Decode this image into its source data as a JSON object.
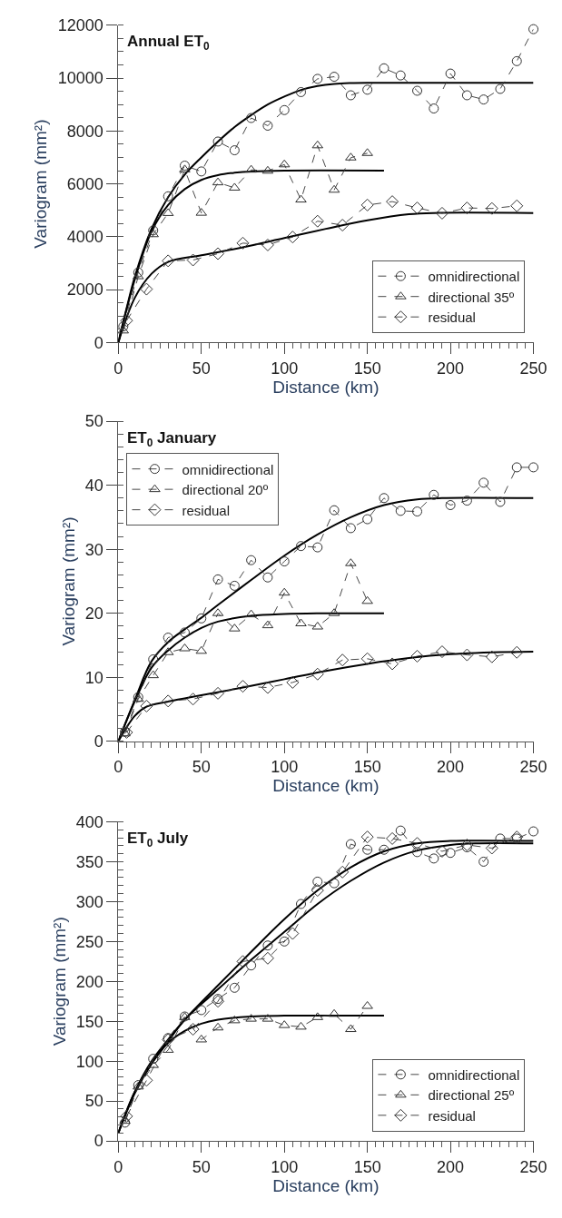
{
  "chart_data": [
    {
      "type": "line",
      "title": "Annual ET$_{0}$",
      "xlabel": "Distance (km)",
      "ylabel": "Variogram (mm²)",
      "xlim": [
        0,
        250
      ],
      "xticks": [
        0,
        50,
        100,
        150,
        200,
        250
      ],
      "ylim": [
        0,
        12000
      ],
      "yticks": [
        0,
        2000,
        4000,
        6000,
        8000,
        10000,
        12000
      ],
      "legend": "bottom right",
      "series": [
        {
          "name": "omnidirectional",
          "color": "#333333",
          "marker": "circle",
          "line_style": "dashed",
          "x": [
            3,
            12,
            21,
            30,
            40,
            50,
            60,
            70,
            80,
            90,
            100,
            110,
            120,
            130,
            140,
            150,
            160,
            170,
            180,
            190,
            200,
            210,
            220,
            230,
            240,
            250
          ],
          "values": [
            610,
            2650,
            4240,
            5530,
            6690,
            6470,
            7600,
            7270,
            8490,
            8200,
            8790,
            9470,
            9970,
            10050,
            9350,
            9560,
            10370,
            10100,
            9520,
            8850,
            10170,
            9350,
            9190,
            9590,
            10640,
            11850
          ]
        },
        {
          "name": "directional 35º",
          "color": "#333333",
          "marker": "triangle",
          "line_style": "dashed",
          "x": [
            3,
            12,
            21,
            30,
            40,
            50,
            60,
            70,
            80,
            90,
            100,
            110,
            120,
            130,
            140,
            150
          ],
          "values": [
            450,
            2500,
            4090,
            4890,
            6540,
            4900,
            6050,
            5850,
            6530,
            6490,
            6730,
            5400,
            7450,
            5770,
            6990,
            7160
          ]
        },
        {
          "name": "residual",
          "color": "#333333",
          "marker": "diamond",
          "line_style": "dashed",
          "x": [
            5,
            17,
            30,
            45,
            60,
            75,
            90,
            105,
            120,
            135,
            150,
            165,
            180,
            195,
            210,
            225,
            240
          ],
          "values": [
            830,
            2020,
            3090,
            3120,
            3360,
            3760,
            3690,
            3990,
            4590,
            4440,
            5200,
            5330,
            5090,
            4890,
            5090,
            5070,
            5170
          ]
        },
        {
          "color": "#000000",
          "marker": "none",
          "line_style": "solid",
          "x": [
            0,
            5,
            10,
            20,
            30,
            40,
            50,
            60,
            70,
            80,
            90,
            100,
            110,
            120,
            130,
            140,
            150,
            250
          ],
          "values": [
            0,
            1300,
            2500,
            4300,
            5500,
            6350,
            7000,
            7600,
            8150,
            8600,
            9000,
            9300,
            9550,
            9700,
            9780,
            9810,
            9820,
            9820
          ]
        },
        {
          "color": "#000000",
          "marker": "none",
          "line_style": "solid",
          "x": [
            0,
            10,
            20,
            30,
            40,
            50,
            60,
            70,
            80,
            100,
            160
          ],
          "values": [
            0,
            2400,
            4200,
            5200,
            5800,
            6150,
            6330,
            6420,
            6470,
            6500,
            6500
          ]
        },
        {
          "color": "#000000",
          "marker": "none",
          "line_style": "solid",
          "x": [
            0,
            10,
            20,
            30,
            50,
            75,
            100,
            125,
            150,
            175,
            190,
            250
          ],
          "values": [
            0,
            1700,
            2600,
            3050,
            3300,
            3600,
            3950,
            4300,
            4620,
            4850,
            4900,
            4900
          ]
        }
      ]
    },
    {
      "type": "line",
      "title": "ET$_{0}$ January",
      "xlabel": "Distance (km)",
      "ylabel": "Variogram (mm²)",
      "xlim": [
        0,
        250
      ],
      "xticks": [
        0,
        50,
        100,
        150,
        200,
        250
      ],
      "ylim": [
        0,
        50
      ],
      "yticks": [
        0,
        10,
        20,
        30,
        40,
        50
      ],
      "legend": "top left",
      "series": [
        {
          "name": "omnidirectional",
          "color": "#333333",
          "marker": "circle",
          "line_style": "dashed",
          "x": [
            4,
            12,
            21,
            30,
            40,
            50,
            60,
            70,
            80,
            90,
            100,
            110,
            120,
            130,
            140,
            150,
            160,
            170,
            180,
            190,
            200,
            210,
            220,
            230,
            240,
            250
          ],
          "values": [
            1.5,
            6.9,
            12.8,
            16.2,
            17.0,
            19.2,
            25.3,
            24.3,
            28.3,
            25.6,
            28.1,
            30.5,
            30.3,
            36.1,
            33.3,
            34.7,
            38.0,
            36.0,
            35.9,
            38.5,
            36.9,
            37.6,
            40.4,
            37.4,
            42.8,
            42.8
          ]
        },
        {
          "name": "directional 20º",
          "color": "#333333",
          "marker": "triangle",
          "line_style": "dashed",
          "x": [
            4,
            12,
            21,
            30,
            40,
            50,
            60,
            70,
            80,
            90,
            100,
            110,
            120,
            130,
            140,
            150
          ],
          "values": [
            1.2,
            6.6,
            10.3,
            13.9,
            14.5,
            14.1,
            20.0,
            17.6,
            19.8,
            18.1,
            23.2,
            18.4,
            17.9,
            20.0,
            27.8,
            21.9
          ]
        },
        {
          "name": "residual",
          "color": "#333333",
          "marker": "diamond",
          "line_style": "dashed",
          "x": [
            5,
            17,
            30,
            45,
            60,
            75,
            90,
            105,
            120,
            135,
            150,
            165,
            180,
            195,
            210,
            225,
            240
          ],
          "values": [
            1.4,
            5.5,
            6.3,
            6.6,
            7.5,
            8.6,
            8.4,
            9.2,
            10.5,
            12.7,
            12.9,
            12.1,
            13.3,
            14.0,
            13.5,
            13.2,
            13.9
          ]
        },
        {
          "color": "#000000",
          "marker": "none",
          "line_style": "solid",
          "x": [
            0,
            10,
            20,
            30,
            40,
            50,
            60,
            80,
            100,
            120,
            140,
            160,
            180,
            195,
            250
          ],
          "values": [
            0,
            6.5,
            12.5,
            15.5,
            17.5,
            19.3,
            21.3,
            25.2,
            29.0,
            32.3,
            35.0,
            36.9,
            37.8,
            38.0,
            38.0
          ]
        },
        {
          "color": "#000000",
          "marker": "none",
          "line_style": "solid",
          "x": [
            0,
            10,
            20,
            30,
            40,
            50,
            60,
            80,
            100,
            120,
            160
          ],
          "values": [
            0,
            6.3,
            11.5,
            14.2,
            16.2,
            17.7,
            18.7,
            19.6,
            19.9,
            20.0,
            20.0
          ]
        },
        {
          "color": "#000000",
          "marker": "none",
          "line_style": "solid",
          "x": [
            0,
            10,
            17,
            30,
            50,
            75,
            100,
            125,
            150,
            175,
            200,
            225,
            250
          ],
          "values": [
            0,
            4.0,
            5.4,
            6.2,
            7.2,
            8.4,
            9.7,
            11.0,
            12.1,
            13.0,
            13.6,
            13.9,
            14.0
          ]
        }
      ]
    },
    {
      "type": "line",
      "title": "ET$_{0}$ July",
      "xlabel": "Distance (km)",
      "ylabel": "Variogram (mm²)",
      "xlim": [
        0,
        250
      ],
      "xticks": [
        0,
        50,
        100,
        150,
        200,
        250
      ],
      "ylim": [
        0,
        400
      ],
      "yticks": [
        0,
        50,
        100,
        150,
        200,
        250,
        300,
        350,
        400
      ],
      "legend": "bottom right",
      "series": [
        {
          "name": "omnidirectional",
          "color": "#333333",
          "marker": "circle",
          "line_style": "dashed",
          "x": [
            4,
            12,
            21,
            30,
            40,
            50,
            60,
            70,
            80,
            90,
            100,
            110,
            120,
            130,
            140,
            150,
            160,
            170,
            180,
            190,
            200,
            210,
            220,
            230,
            240,
            250
          ],
          "values": [
            23,
            70,
            103,
            129,
            156,
            164,
            178,
            192,
            220,
            245,
            250,
            297,
            325,
            323,
            372,
            365,
            365,
            389,
            362,
            354,
            361,
            368,
            350,
            379,
            379,
            388
          ]
        },
        {
          "name": "directional 25º",
          "color": "#333333",
          "marker": "triangle",
          "line_style": "dashed",
          "x": [
            4,
            12,
            21,
            30,
            40,
            50,
            60,
            70,
            80,
            90,
            100,
            110,
            120,
            130,
            140,
            150
          ],
          "values": [
            25,
            68,
            95,
            114,
            155,
            127,
            142,
            151,
            153,
            153,
            145,
            143,
            155,
            159,
            140,
            169
          ]
        },
        {
          "name": "residual",
          "color": "#333333",
          "marker": "diamond",
          "line_style": "dashed",
          "x": [
            5,
            17,
            30,
            45,
            60,
            75,
            90,
            105,
            120,
            135,
            150,
            165,
            180,
            195,
            210,
            225,
            240
          ],
          "values": [
            31,
            76,
            127,
            140,
            175,
            225,
            229,
            260,
            314,
            337,
            381,
            379,
            373,
            363,
            371,
            367,
            381
          ]
        },
        {
          "color": "#000000",
          "marker": "none",
          "line_style": "solid",
          "x": [
            0,
            10,
            20,
            30,
            40,
            60,
            80,
            100,
            120,
            140,
            160,
            180,
            200,
            250
          ],
          "values": [
            10,
            62,
            100,
            127,
            152,
            195,
            237,
            278,
            314,
            343,
            363,
            373,
            376,
            376
          ]
        },
        {
          "color": "#000000",
          "marker": "none",
          "line_style": "solid",
          "x": [
            0,
            10,
            20,
            30,
            40,
            50,
            60,
            80,
            100,
            160
          ],
          "values": [
            10,
            62,
            97,
            123,
            138,
            147,
            152,
            156,
            157,
            157
          ]
        },
        {
          "color": "#000000",
          "marker": "none",
          "line_style": "solid",
          "x": [
            0,
            10,
            20,
            30,
            40,
            60,
            80,
            100,
            120,
            140,
            160,
            180,
            200,
            215,
            250
          ],
          "values": [
            10,
            60,
            97,
            125,
            152,
            190,
            227,
            262,
            297,
            326,
            349,
            364,
            371,
            373,
            373
          ]
        }
      ]
    }
  ]
}
